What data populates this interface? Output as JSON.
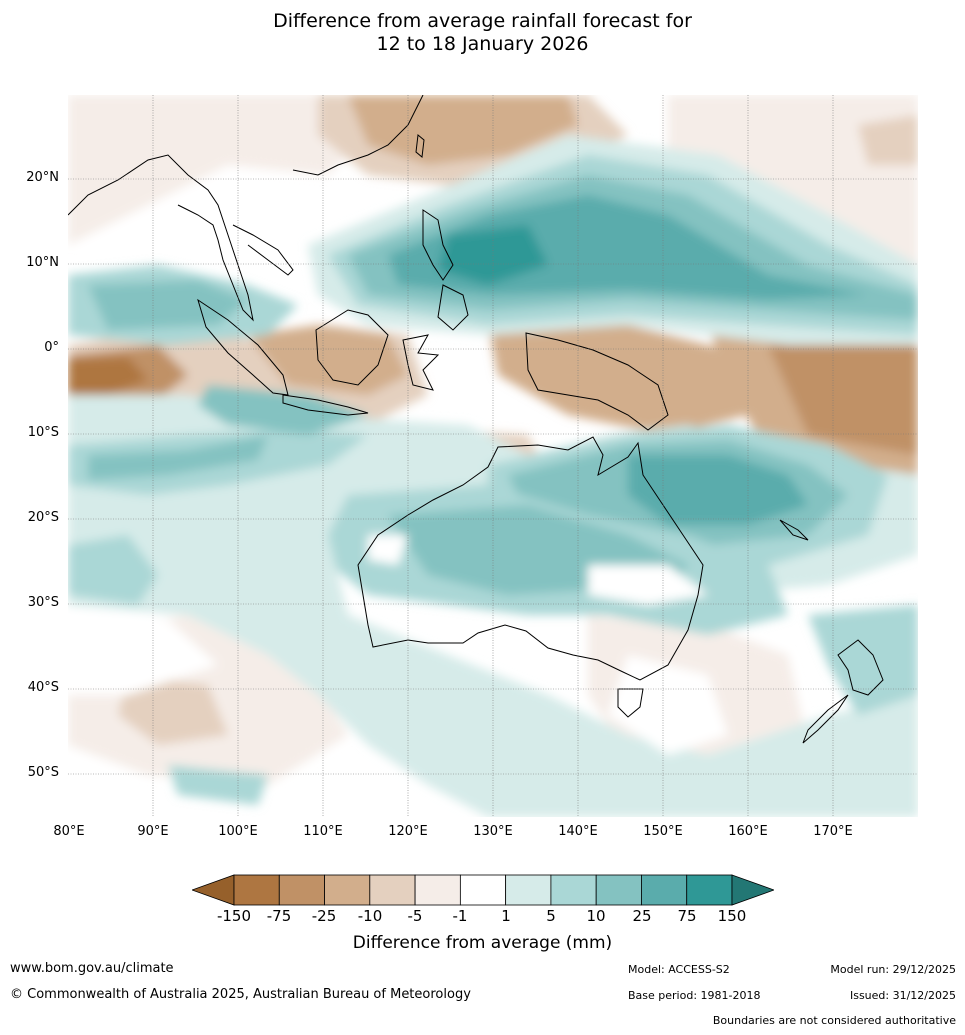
{
  "title": {
    "line1": "Difference from average rainfall forecast for",
    "line2": "12 to 18 January 2026"
  },
  "map": {
    "lat_labels": [
      "20°N",
      "10°N",
      "0°",
      "10°S",
      "20°S",
      "30°S",
      "40°S",
      "50°S"
    ],
    "lon_labels": [
      "80°E",
      "90°E",
      "100°E",
      "110°E",
      "120°E",
      "130°E",
      "140°E",
      "150°E",
      "160°E",
      "170°E"
    ]
  },
  "legend": {
    "title": "Difference from average (mm)",
    "tick_labels": [
      "-150",
      "-75",
      "-25",
      "-10",
      "-5",
      "-1",
      "1",
      "5",
      "10",
      "25",
      "75",
      "150"
    ],
    "colors": [
      "#96602b",
      "#ae7641",
      "#c09166",
      "#d2ae8c",
      "#e4d0bf",
      "#f5ede8",
      "#ffffff",
      "#d6ebe9",
      "#aad7d6",
      "#84c2c1",
      "#5aacac",
      "#2f9896",
      "#237774"
    ]
  },
  "footer": {
    "website": "www.bom.gov.au/climate",
    "copyright": "© Commonwealth of Australia 2025, Australian Bureau of Meteorology",
    "model": "Model: ACCESS-S2",
    "base_period": "Base period: 1981-2018",
    "model_run": "Model run: 29/12/2025",
    "issued": "Issued: 31/12/2025",
    "disclaimer": "Boundaries are not considered authoritative"
  }
}
